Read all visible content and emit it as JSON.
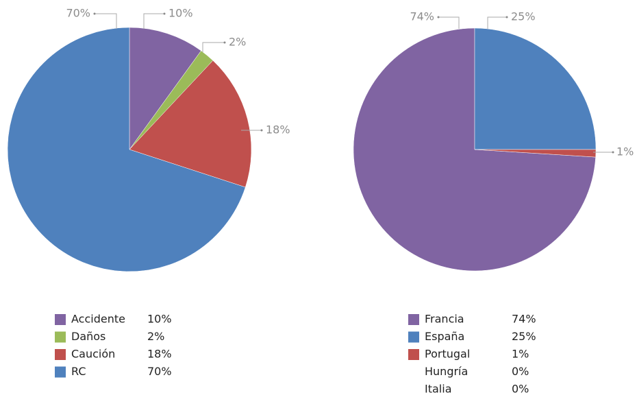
{
  "chart_data": [
    {
      "type": "pie",
      "categories": [
        "Accidente",
        "Daños",
        "Caución",
        "RC"
      ],
      "values": [
        10,
        2,
        18,
        70
      ],
      "value_labels": [
        "10%",
        "2%",
        "18%",
        "70%"
      ],
      "colors": [
        "#8064a2",
        "#9bbb59",
        "#c0504d",
        "#4f81bd"
      ]
    },
    {
      "type": "pie",
      "categories": [
        "Francia",
        "España",
        "Portugal",
        "Hungría",
        "Italia"
      ],
      "values": [
        74,
        25,
        1,
        0,
        0
      ],
      "value_labels": [
        "74%",
        "25%",
        "1%",
        "0%",
        "0%"
      ],
      "colors": [
        "#8064a2",
        "#4f81bd",
        "#c0504d",
        null,
        null
      ]
    }
  ]
}
